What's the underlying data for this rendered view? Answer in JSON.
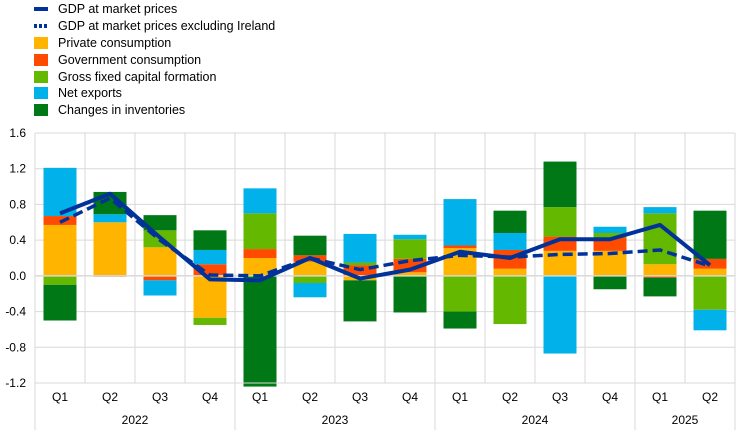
{
  "chart_data": {
    "type": "bar",
    "stacked": true,
    "categories": [
      "Q1",
      "Q2",
      "Q3",
      "Q4",
      "Q1",
      "Q2",
      "Q3",
      "Q4",
      "Q1",
      "Q2",
      "Q3",
      "Q4",
      "Q1",
      "Q2"
    ],
    "years": [
      {
        "label": "2022",
        "span": 4
      },
      {
        "label": "2023",
        "span": 4
      },
      {
        "label": "2024",
        "span": 4
      },
      {
        "label": "2025",
        "span": 2
      }
    ],
    "ylim": [
      -1.2,
      1.6
    ],
    "yticks": [
      "-1.2",
      "-0.8",
      "-0.4",
      "0.0",
      "0.4",
      "0.8",
      "1.2",
      "1.6"
    ],
    "grid": true,
    "legend_placement": "top-left",
    "series": [
      {
        "name": "Private consumption",
        "color": "#FFB400",
        "values": [
          0.57,
          0.6,
          0.32,
          -0.47,
          0.2,
          0.16,
          -0.05,
          0.04,
          0.31,
          0.08,
          0.28,
          0.28,
          0.13,
          0.08
        ]
      },
      {
        "name": "Government consumption",
        "color": "#FF4B00",
        "values": [
          0.1,
          -0.01,
          -0.05,
          0.13,
          0.1,
          0.07,
          0.12,
          0.15,
          0.03,
          0.21,
          0.16,
          0.15,
          -0.02,
          0.11
        ]
      },
      {
        "name": "Gross fixed capital formation",
        "color": "#65B800",
        "values": [
          -0.1,
          0.0,
          0.19,
          -0.08,
          0.4,
          -0.08,
          0.03,
          0.22,
          -0.4,
          -0.54,
          0.33,
          0.05,
          0.57,
          -0.38
        ]
      },
      {
        "name": "Net exports",
        "color": "#00B1EA",
        "values": [
          0.54,
          0.09,
          -0.17,
          0.16,
          0.28,
          -0.16,
          0.32,
          0.05,
          0.52,
          0.19,
          -0.87,
          0.07,
          0.07,
          -0.23
        ]
      },
      {
        "name": "Changes in inventories",
        "color": "#007816",
        "values": [
          -0.4,
          0.25,
          0.17,
          0.22,
          -1.24,
          0.22,
          -0.46,
          -0.41,
          -0.19,
          0.25,
          0.51,
          -0.15,
          -0.21,
          0.54
        ]
      }
    ],
    "lines": [
      {
        "name": "GDP at market prices",
        "color": "#003299",
        "dashed": false,
        "values": [
          0.7,
          0.92,
          0.43,
          -0.04,
          -0.05,
          0.2,
          -0.03,
          0.07,
          0.27,
          0.2,
          0.41,
          0.41,
          0.57,
          0.12
        ]
      },
      {
        "name": "GDP at market prices excluding Ireland",
        "color": "#003299",
        "dashed": true,
        "values": [
          0.6,
          0.87,
          0.4,
          0.01,
          0.0,
          0.2,
          0.07,
          0.17,
          0.23,
          0.21,
          0.24,
          0.25,
          0.29,
          0.11
        ]
      }
    ]
  }
}
